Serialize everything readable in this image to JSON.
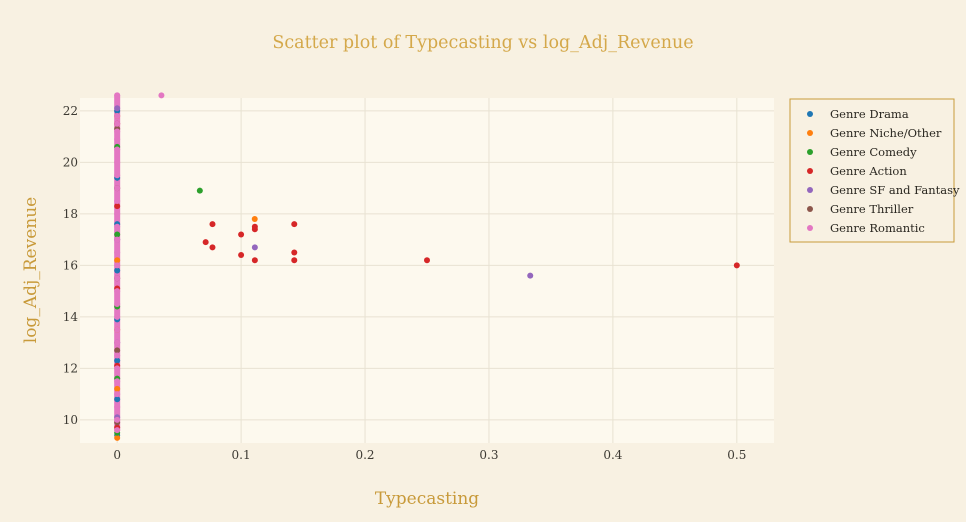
{
  "chart_data": {
    "type": "scatter",
    "title": "Scatter plot of Typecasting vs log_Adj_Revenue",
    "xlabel": "Typecasting",
    "ylabel": "log_Adj_Revenue",
    "xlim": [
      -0.03,
      0.53
    ],
    "ylim": [
      9.1,
      22.5
    ],
    "x_ticks": [
      0,
      0.1,
      0.2,
      0.3,
      0.4,
      0.5
    ],
    "x_tick_labels": [
      "0",
      "0.1",
      "0.2",
      "0.3",
      "0.4",
      "0.5"
    ],
    "y_ticks": [
      10,
      12,
      14,
      16,
      18,
      20,
      22
    ],
    "y_tick_labels": [
      "10",
      "12",
      "14",
      "16",
      "18",
      "20",
      "22"
    ],
    "grid": true,
    "legend_position": "top-right",
    "colors": {
      "title": "#d4a84a",
      "axis_label": "#c89a3a",
      "plot_bg": "#fdf9ee",
      "paper_bg": "#f8f1e2",
      "grid": "#e8e2d2",
      "legend_border": "#c89a3a"
    },
    "series": [
      {
        "name": "Genre Drama",
        "color": "#1f77b4",
        "x": [
          0,
          0,
          0,
          0,
          0,
          0,
          0,
          0
        ],
        "y": [
          9.4,
          10.8,
          12.3,
          13.9,
          15.8,
          17.6,
          19.4,
          22.0
        ]
      },
      {
        "name": "Genre Niche/Other",
        "color": "#ff7f0e",
        "x": [
          0,
          0,
          0,
          0,
          0,
          0.111
        ],
        "y": [
          9.3,
          11.2,
          13.5,
          16.2,
          21.8,
          17.8
        ]
      },
      {
        "name": "Genre Comedy",
        "color": "#2ca02c",
        "x": [
          0,
          0,
          0,
          0,
          0,
          0.0667
        ],
        "y": [
          9.5,
          11.6,
          14.4,
          17.2,
          20.6,
          18.9
        ]
      },
      {
        "name": "Genre Action",
        "color": "#d62728",
        "x": [
          0,
          0,
          0,
          0,
          0,
          0.0714,
          0.0769,
          0.0769,
          0.1,
          0.1,
          0.1111,
          0.1111,
          0.1111,
          0.1429,
          0.1429,
          0.1429,
          0.25,
          0.5
        ],
        "y": [
          9.7,
          12.1,
          15.1,
          18.3,
          21.5,
          16.9,
          17.6,
          16.7,
          17.2,
          16.4,
          17.4,
          17.5,
          16.2,
          17.6,
          16.5,
          16.2,
          16.2,
          16.0
        ]
      },
      {
        "name": "Genre SF and Fantasy",
        "color": "#9467bd",
        "x": [
          0,
          0,
          0,
          0,
          0.1111,
          0.3333
        ],
        "y": [
          10.1,
          13.0,
          17.0,
          22.1,
          16.7,
          15.6
        ]
      },
      {
        "name": "Genre Thriller",
        "color": "#8c564b",
        "x": [
          0,
          0,
          0,
          0,
          0
        ],
        "y": [
          9.9,
          12.7,
          15.5,
          19.0,
          21.3
        ]
      },
      {
        "name": "Genre Romantic",
        "color": "#e377c2",
        "x": [
          0,
          0,
          0,
          0,
          0,
          0,
          0,
          0,
          0,
          0,
          0,
          0,
          0,
          0,
          0,
          0,
          0,
          0,
          0,
          0,
          0,
          0,
          0,
          0,
          0,
          0,
          0,
          0,
          0.0357
        ],
        "y": [
          9.6,
          10.0,
          10.5,
          11.0,
          11.5,
          12.0,
          12.5,
          13.0,
          13.5,
          14.0,
          14.5,
          15.0,
          15.5,
          16.0,
          16.5,
          17.0,
          17.5,
          18.0,
          18.5,
          19.0,
          19.5,
          20.0,
          20.5,
          20.9,
          21.2,
          21.5,
          21.8,
          22.6,
          22.6
        ]
      }
    ]
  }
}
